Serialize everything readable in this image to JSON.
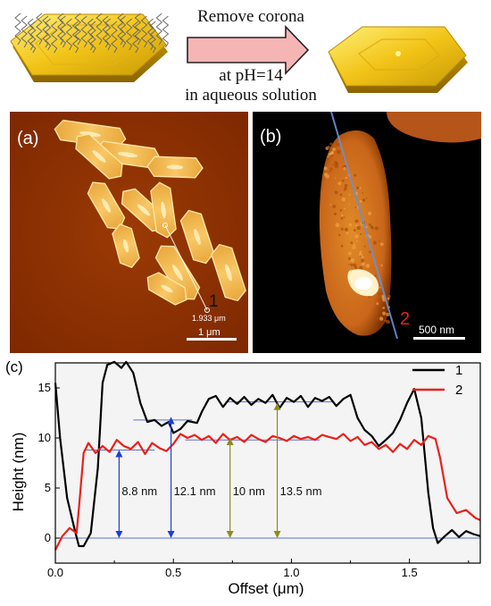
{
  "scheme": {
    "line1": "Remove corona",
    "line2": "at pH=14",
    "line3": "in aqueous solution"
  },
  "panel_a": {
    "label": "(a)",
    "marker": "1",
    "measure": "1.933 μm",
    "scalebar": "1 μm",
    "colors": {
      "bg": "#8a2f00",
      "particle": "#f6c15c",
      "edge": "#ffe9a8"
    }
  },
  "panel_b": {
    "label": "(b)",
    "marker": "2",
    "scalebar": "500 nm",
    "colors": {
      "bg": "#000000",
      "particle": "#d77a1c",
      "bright": "#fff7d8",
      "line": "#6b8fd6"
    }
  },
  "chart_data": {
    "type": "line",
    "label": "(c)",
    "xlabel": "Offset (μm)",
    "ylabel": "Height (nm)",
    "xlim": [
      0,
      1.8
    ],
    "ylim": [
      -2.5,
      17.5
    ],
    "xticks": [
      "0.0",
      "0.5",
      "1.0",
      "1.5"
    ],
    "yticks": [
      "0",
      "5",
      "10",
      "15"
    ],
    "legend_position": "top-right",
    "series": [
      {
        "name": "1",
        "color": "#000000",
        "x": [
          0.0,
          0.02,
          0.05,
          0.08,
          0.1,
          0.12,
          0.15,
          0.18,
          0.2,
          0.22,
          0.25,
          0.28,
          0.3,
          0.33,
          0.36,
          0.39,
          0.42,
          0.45,
          0.48,
          0.5,
          0.53,
          0.56,
          0.6,
          0.62,
          0.65,
          0.68,
          0.71,
          0.74,
          0.77,
          0.8,
          0.83,
          0.86,
          0.89,
          0.92,
          0.95,
          0.98,
          1.01,
          1.04,
          1.07,
          1.1,
          1.13,
          1.16,
          1.19,
          1.22,
          1.25,
          1.28,
          1.31,
          1.34,
          1.37,
          1.4,
          1.43,
          1.46,
          1.49,
          1.52,
          1.55,
          1.58,
          1.6,
          1.62,
          1.65,
          1.68,
          1.71,
          1.74,
          1.77,
          1.8
        ],
        "y": [
          15.5,
          10,
          4,
          1,
          -0.8,
          -0.8,
          0.5,
          7,
          15.5,
          17.3,
          17.6,
          17.0,
          17.6,
          16.5,
          13.5,
          11.6,
          11.8,
          11.2,
          11.6,
          10.5,
          10.9,
          11.7,
          11.5,
          12.6,
          13.9,
          14.2,
          13.1,
          14.0,
          13.4,
          14.1,
          13.3,
          13.9,
          13.5,
          14.3,
          13.0,
          14.0,
          13.6,
          14.2,
          13.1,
          14.0,
          13.7,
          14.1,
          13.2,
          13.9,
          14.3,
          12.0,
          10.8,
          10.2,
          9.2,
          9.8,
          10.5,
          11.8,
          13.5,
          14.9,
          12.0,
          4.5,
          1.0,
          -0.5,
          0.2,
          0.8,
          0.1,
          0.7,
          0.4,
          0.2
        ]
      },
      {
        "name": "2",
        "color": "#e8211a",
        "x": [
          0.0,
          0.03,
          0.06,
          0.09,
          0.1,
          0.12,
          0.14,
          0.17,
          0.2,
          0.23,
          0.26,
          0.29,
          0.32,
          0.35,
          0.38,
          0.41,
          0.44,
          0.47,
          0.5,
          0.53,
          0.56,
          0.59,
          0.62,
          0.65,
          0.68,
          0.71,
          0.74,
          0.77,
          0.8,
          0.83,
          0.86,
          0.89,
          0.92,
          0.95,
          0.98,
          1.01,
          1.04,
          1.07,
          1.1,
          1.13,
          1.16,
          1.19,
          1.22,
          1.25,
          1.28,
          1.31,
          1.34,
          1.37,
          1.4,
          1.43,
          1.46,
          1.49,
          1.52,
          1.55,
          1.58,
          1.61,
          1.63,
          1.66,
          1.7,
          1.74,
          1.78,
          1.8
        ],
        "y": [
          -1.2,
          0.2,
          1.0,
          0.5,
          3.0,
          8.5,
          9.5,
          8.5,
          9.2,
          8.6,
          9.8,
          9.2,
          8.9,
          9.6,
          8.4,
          9.5,
          9.0,
          8.7,
          9.4,
          10.4,
          10.0,
          10.3,
          9.8,
          10.2,
          9.5,
          10.4,
          9.8,
          10.1,
          9.6,
          10.3,
          9.9,
          9.6,
          10.2,
          10.0,
          9.7,
          10.2,
          9.9,
          10.1,
          9.8,
          10.3,
          10.1,
          9.9,
          10.4,
          9.7,
          10.1,
          9.3,
          9.6,
          8.9,
          9.3,
          8.6,
          9.4,
          8.9,
          9.8,
          9.3,
          10.2,
          9.9,
          8.0,
          4.0,
          2.5,
          2.8,
          2.0,
          1.8
        ]
      }
    ],
    "annotations": [
      {
        "text": "8.8 nm",
        "x": 0.27,
        "y0": 0,
        "y1": 8.8,
        "color": "#1d3fd6"
      },
      {
        "text": "12.1 nm",
        "x": 0.49,
        "y0": 0,
        "y1": 12.1,
        "color": "#1d3fd6"
      },
      {
        "text": "10 nm",
        "x": 0.74,
        "y0": 0,
        "y1": 10.0,
        "color": "#8f8a1c"
      },
      {
        "text": "13.5 nm",
        "x": 0.94,
        "y0": 0,
        "y1": 13.5,
        "color": "#8f8a1c"
      }
    ],
    "reference_lines": [
      {
        "y": 0,
        "x0": 0.0,
        "x1": 1.8
      },
      {
        "y": 8.8,
        "x0": 0.12,
        "x1": 0.42
      },
      {
        "y": 11.8,
        "x0": 0.33,
        "x1": 0.58
      },
      {
        "y": 9.8,
        "x0": 0.55,
        "x1": 1.12
      },
      {
        "y": 13.6,
        "x0": 0.72,
        "x1": 1.18
      }
    ]
  }
}
